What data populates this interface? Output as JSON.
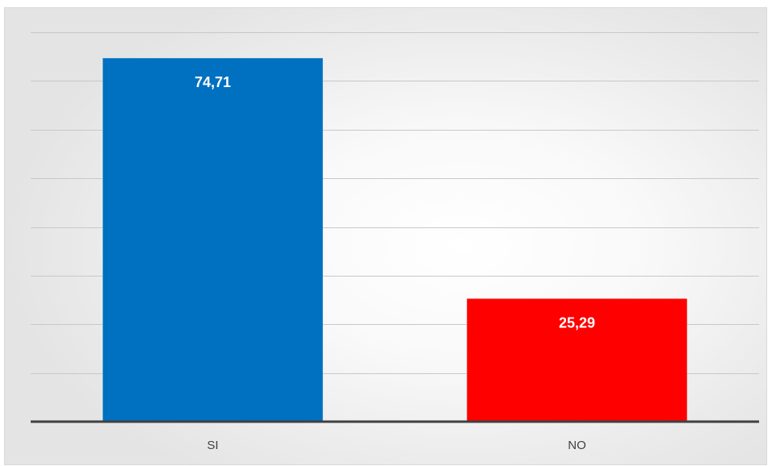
{
  "chart_data": {
    "type": "bar",
    "categories": [
      "SI",
      "NO"
    ],
    "values": [
      74.71,
      25.29
    ],
    "value_labels": [
      "74,71",
      "25,29"
    ],
    "colors": [
      "#0070c0",
      "#ff0000"
    ],
    "ylim": [
      0,
      80
    ],
    "gridlines": [
      10,
      20,
      30,
      40,
      50,
      60,
      70,
      80
    ],
    "grid": true,
    "title": "",
    "xlabel": "",
    "ylabel": ""
  }
}
